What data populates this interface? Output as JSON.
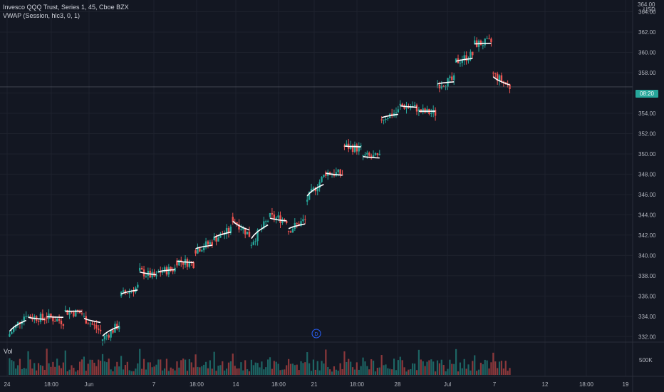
{
  "legend": {
    "title": "Invesco QQQ Trust, Series 1, 45, Cboe BZX",
    "indicator": "VWAP (Session, hlc3, 0, 1)"
  },
  "volume_label": "Vol",
  "volume_tick": "500K",
  "currency": "USD",
  "price_badge": "08:20",
  "event_marker": "D",
  "colors": {
    "background": "#131722",
    "up": "#26a69a",
    "down": "#ef5350",
    "vwap": "#ffffff",
    "grid": "#1e222d",
    "text": "#b2b5be"
  },
  "chart_data": {
    "type": "candlestick",
    "title": "Invesco QQQ Trust, Series 1, 45, Cboe BZX",
    "ylabel": "USD",
    "ylim": [
      331.6,
      364.6
    ],
    "yticks": [
      332.0,
      334.0,
      336.0,
      338.0,
      340.0,
      342.0,
      344.0,
      346.0,
      348.0,
      350.0,
      352.0,
      354.0,
      356.0,
      358.0,
      360.0,
      362.0,
      364.0
    ],
    "ytick_labels": [
      "332.00",
      "334.00",
      "336.00",
      "338.00",
      "340.00",
      "342.00",
      "344.00",
      "346.00",
      "348.00",
      "350.00",
      "352.00",
      "354.00",
      "356.00",
      "358.00",
      "360.00",
      "362.00",
      "364.00"
    ],
    "top_axis_label": "364.00",
    "xtick_labels": [
      "24",
      "18:00",
      "Jun",
      "7",
      "18:00",
      "14",
      "18:00",
      "21",
      "18:00",
      "28",
      "Jul",
      "7",
      "12",
      "18:00",
      "19"
    ],
    "grid": true,
    "current_price": 356.6,
    "sessions": [
      {
        "open": 332.0,
        "close": 334.3,
        "vwap_end": 333.6
      },
      {
        "open": 334.0,
        "close": 333.8,
        "vwap_end": 333.7
      },
      {
        "open": 334.0,
        "close": 333.5,
        "vwap_end": 333.9
      },
      {
        "open": 334.5,
        "close": 334.3,
        "vwap_end": 334.5
      },
      {
        "open": 334.0,
        "close": 332.5,
        "vwap_end": 333.4
      },
      {
        "open": 331.6,
        "close": 333.2,
        "vwap_end": 333.0
      },
      {
        "open": 336.0,
        "close": 336.9,
        "vwap_end": 336.6
      },
      {
        "open": 338.5,
        "close": 337.8,
        "vwap_end": 338.1
      },
      {
        "open": 338.3,
        "close": 338.7,
        "vwap_end": 338.6
      },
      {
        "open": 339.5,
        "close": 339.2,
        "vwap_end": 339.3
      },
      {
        "open": 340.5,
        "close": 341.3,
        "vwap_end": 341.0
      },
      {
        "open": 341.5,
        "close": 342.5,
        "vwap_end": 342.3
      },
      {
        "open": 343.8,
        "close": 342.0,
        "vwap_end": 342.5
      },
      {
        "open": 341.0,
        "close": 343.5,
        "vwap_end": 343.0
      },
      {
        "open": 343.8,
        "close": 343.5,
        "vwap_end": 343.4
      },
      {
        "open": 342.4,
        "close": 343.5,
        "vwap_end": 343.1
      },
      {
        "open": 345.3,
        "close": 347.8,
        "vwap_end": 347.0
      },
      {
        "open": 348.2,
        "close": 348.0,
        "vwap_end": 347.9
      },
      {
        "open": 350.8,
        "close": 350.5,
        "vwap_end": 350.7
      },
      {
        "open": 349.8,
        "close": 349.6,
        "vwap_end": 349.6
      },
      {
        "open": 353.4,
        "close": 354.2,
        "vwap_end": 353.9
      },
      {
        "open": 354.8,
        "close": 354.5,
        "vwap_end": 354.6
      },
      {
        "open": 354.2,
        "close": 354.0,
        "vwap_end": 354.2
      },
      {
        "open": 356.8,
        "close": 357.3,
        "vwap_end": 357.1
      },
      {
        "open": 359.0,
        "close": 359.8,
        "vwap_end": 359.4
      },
      {
        "open": 360.8,
        "close": 361.0,
        "vwap_end": 360.9
      },
      {
        "open": 358.0,
        "close": 356.6,
        "vwap_end": 356.8
      }
    ],
    "volume_ylim": [
      0,
      800000
    ],
    "volume_ytick": 500000
  }
}
